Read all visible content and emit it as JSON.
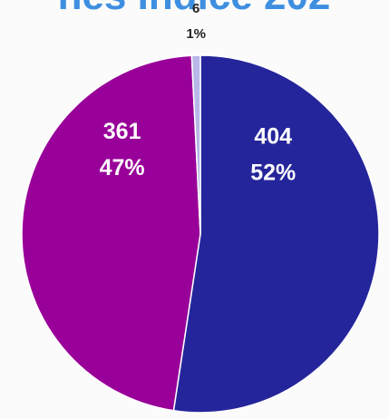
{
  "chart_data": {
    "type": "pie",
    "title": "nes Índice 202",
    "categories": [
      null,
      null,
      null
    ],
    "values": [
      404,
      361,
      6
    ],
    "percent_labels": [
      "52%",
      "47%",
      "1%"
    ],
    "colors": [
      "#25259b",
      "#990099",
      "#b7b7e8"
    ]
  }
}
